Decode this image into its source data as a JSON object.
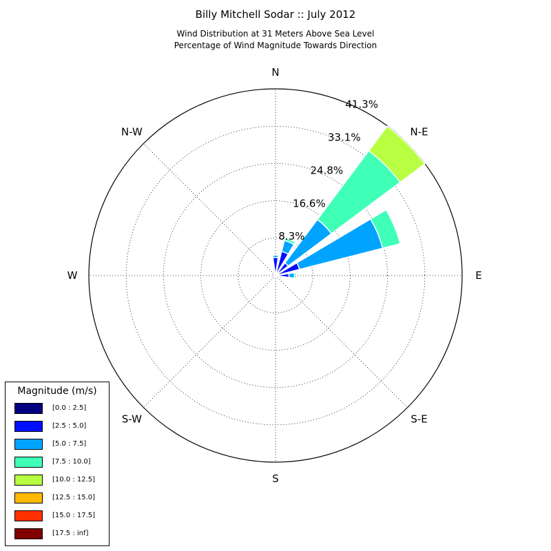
{
  "title": "Billy Mitchell Sodar :: July 2012",
  "subtitle_line1": "Wind Distribution at 31 Meters Above Sea Level",
  "subtitle_line2": "Percentage of Wind Magnitude Towards Direction",
  "chart_data": {
    "type": "windrose",
    "directions": [
      "N",
      "N-E",
      "E",
      "S-E",
      "S",
      "S-W",
      "W",
      "N-W"
    ],
    "radial_ticks": [
      "8.3%",
      "16.6%",
      "24.8%",
      "33.1%",
      "41.3%"
    ],
    "radial_tick_values": [
      8.27,
      16.54,
      24.81,
      33.08,
      41.35
    ],
    "rmax": 41.35,
    "bins": [
      {
        "label": "[0.0 : 2.5]",
        "color": "#000080"
      },
      {
        "label": "[2.5 : 5.0]",
        "color": "#0010ff"
      },
      {
        "label": "[5.0 : 7.5]",
        "color": "#00a4ff"
      },
      {
        "label": "[7.5 : 10.0]",
        "color": "#40ffb7"
      },
      {
        "label": "[10.0 : 12.5]",
        "color": "#b7ff40"
      },
      {
        "label": "[12.5 : 15.0]",
        "color": "#ffb900"
      },
      {
        "label": "[15.0 : 17.5]",
        "color": "#ff3000"
      },
      {
        "label": "[17.5 : inf]",
        "color": "#800000"
      }
    ],
    "sectors": [
      {
        "direction_deg": 0,
        "cumulative": [
          0.3,
          4.0,
          4.5
        ]
      },
      {
        "direction_deg": 22.5,
        "cumulative": [
          0.5,
          5.5,
          8.0,
          8.6
        ]
      },
      {
        "direction_deg": 45,
        "cumulative": [
          0.5,
          3.5,
          15.5,
          34.5,
          41.3
        ]
      },
      {
        "direction_deg": 67.5,
        "cumulative": [
          0.5,
          5.5,
          24.5,
          28.5
        ]
      },
      {
        "direction_deg": 90,
        "cumulative": [
          0.3,
          3.0,
          4.2,
          4.6
        ]
      },
      {
        "direction_deg": 112.5,
        "cumulative": [
          0.3,
          1.0,
          1.4
        ]
      },
      {
        "direction_deg": 135,
        "cumulative": [
          0.2,
          0.5
        ]
      },
      {
        "direction_deg": 337.5,
        "cumulative": [
          0.3,
          1.0,
          1.3
        ]
      }
    ]
  }
}
